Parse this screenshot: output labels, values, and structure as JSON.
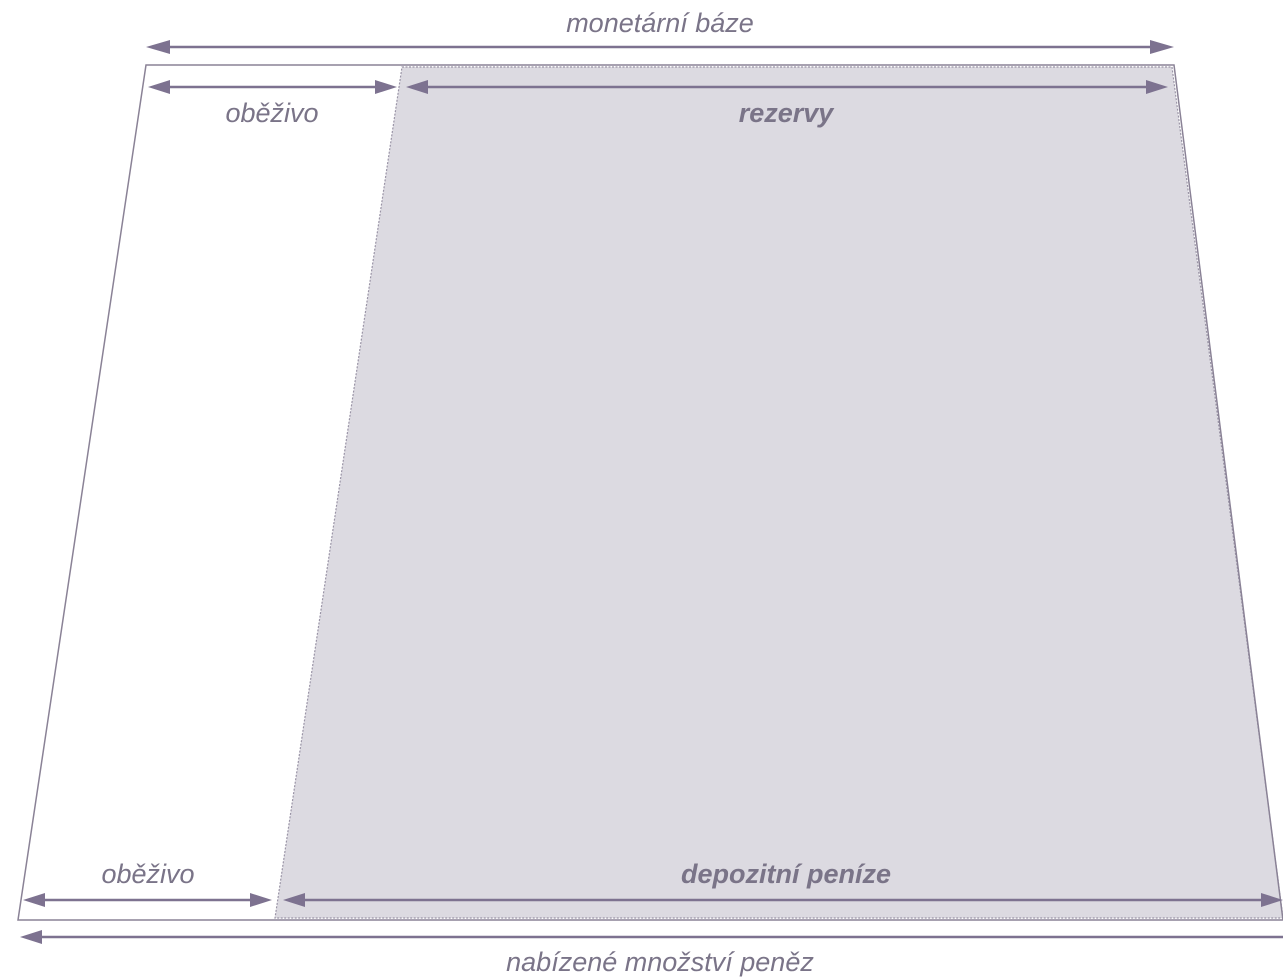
{
  "labels": {
    "monetary_base": "monetární báze",
    "currency_top": "oběživo",
    "reserves": "rezervy",
    "currency_bottom": "oběživo",
    "deposit_money": "depozitní peníze",
    "money_supply": "nabízené množství peněz"
  },
  "colors": {
    "arrow": "#7d7290",
    "outline": "#8a8296",
    "label": "#7a7488",
    "fill": "#dcdae1",
    "background": "#ffffff"
  }
}
